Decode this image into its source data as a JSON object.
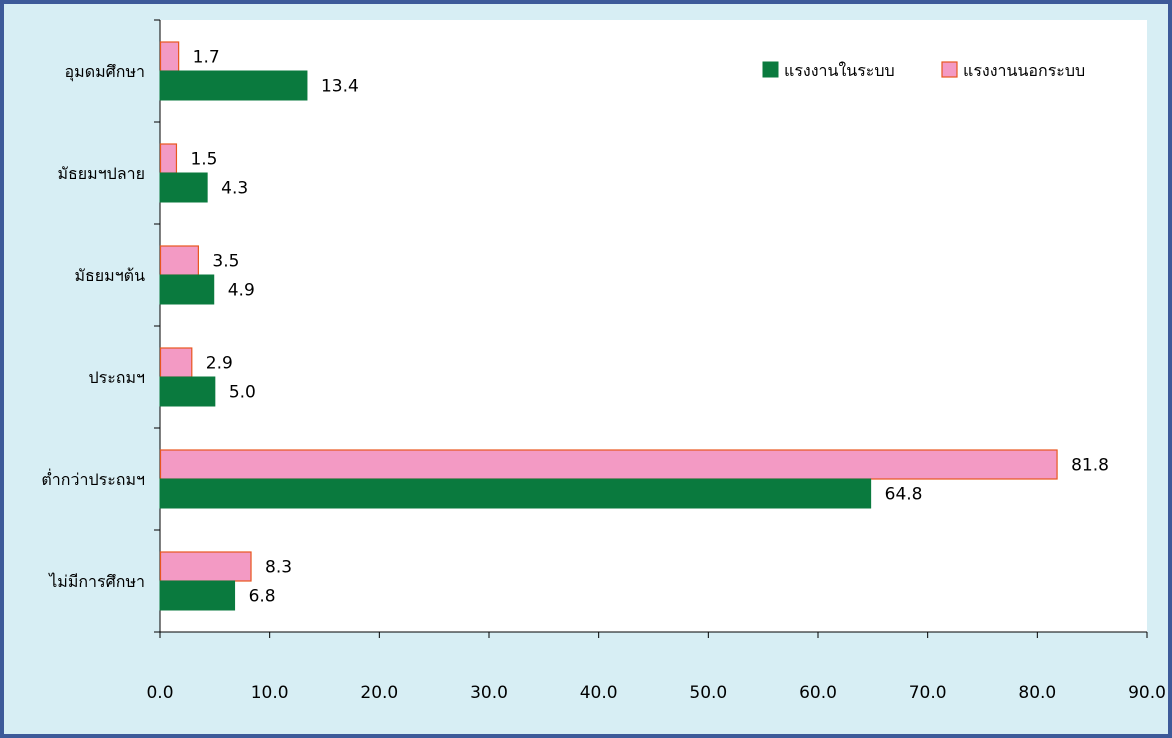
{
  "chart_data": {
    "type": "bar",
    "orientation": "horizontal",
    "categories": [
      "อุมดมศึกษา",
      "มัธยมฯปลาย",
      "มัธยมฯต้น",
      "ประถมฯ",
      "ต่ำกว่าประถมฯ",
      "ไม่มีการศึกษา"
    ],
    "series": [
      {
        "name": "แรงงานในระบบ",
        "values": [
          13.4,
          4.3,
          4.9,
          5.0,
          64.8,
          6.8
        ],
        "labels": [
          "13.4",
          "4.3",
          "4.9",
          "5.0",
          "64.8",
          "6.8"
        ],
        "color": "#0a7a3e",
        "border_color": "#0a7a3e"
      },
      {
        "name": "แรงงานนอกระบบ",
        "values": [
          1.7,
          1.5,
          3.5,
          2.9,
          81.8,
          8.3
        ],
        "labels": [
          "1.7",
          "1.5",
          "3.5",
          "2.9",
          "81.8",
          "8.3"
        ],
        "color": "#f39ac4",
        "border_color": "#e8561e"
      }
    ],
    "x_ticks": [
      "0.0",
      "10.0",
      "20.0",
      "30.0",
      "40.0",
      "50.0",
      "60.0",
      "70.0",
      "80.0",
      "90.0"
    ],
    "xlim": [
      0,
      90
    ],
    "title": "",
    "xlabel": "",
    "ylabel": "",
    "grid": false,
    "legend_position": "top-right",
    "frame_border_color": "#3d5a99",
    "frame_background_color": "#d7eef4",
    "plot_background_color": "#ffffff"
  }
}
